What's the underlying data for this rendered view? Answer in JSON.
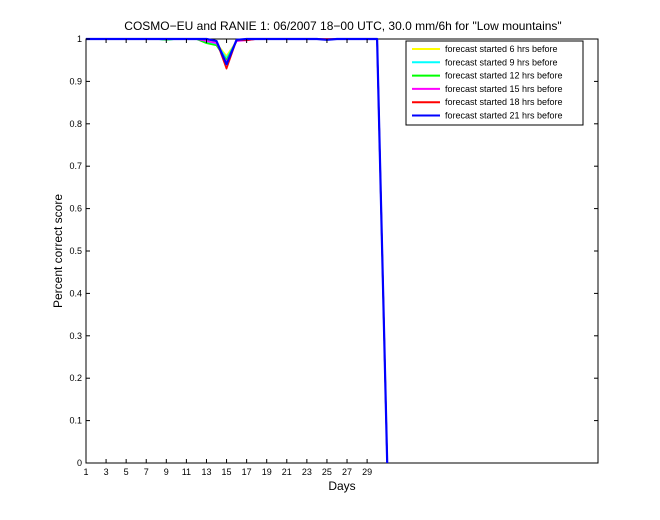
{
  "chart_data": {
    "type": "line",
    "title": "COSMO−EU and RANIE 1: 06/2007 18−00 UTC, 30.0 mm/6h for \"Low mountains\"",
    "xlabel": "Days",
    "ylabel": "Percent correct score",
    "xlim": [
      1,
      52
    ],
    "ylim": [
      0,
      1
    ],
    "x_ticks": [
      1,
      3,
      5,
      7,
      9,
      11,
      13,
      15,
      17,
      19,
      21,
      23,
      25,
      27,
      29
    ],
    "x_tick_labels": [
      "1",
      "3",
      "5",
      "7",
      "9",
      "11",
      "13",
      "15",
      "17",
      "19",
      "21",
      "23",
      "25",
      "27",
      "29"
    ],
    "y_ticks": [
      0,
      0.1,
      0.2,
      0.3,
      0.4,
      0.5,
      0.6,
      0.7,
      0.8,
      0.9,
      1
    ],
    "y_tick_labels": [
      "0",
      "0.1",
      "0.2",
      "0.3",
      "0.4",
      "0.5",
      "0.6",
      "0.7",
      "0.8",
      "0.9",
      "1"
    ],
    "grid": false,
    "legend_position": "top-right",
    "x": [
      1,
      2,
      3,
      4,
      5,
      6,
      7,
      8,
      9,
      10,
      11,
      12,
      13,
      14,
      15,
      16,
      17,
      18,
      19,
      20,
      21,
      22,
      23,
      24,
      25,
      26,
      27,
      28,
      29,
      30,
      31
    ],
    "series": [
      {
        "name": "forecast started 6 hrs before",
        "color": "#ffff00",
        "values": [
          1,
          1,
          1,
          1,
          1,
          1,
          1,
          1,
          1,
          1,
          1,
          1,
          0.995,
          0.99,
          0.96,
          0.995,
          1,
          1,
          1,
          1,
          1,
          1,
          1,
          1,
          1,
          1,
          1,
          1,
          1,
          1,
          0
        ]
      },
      {
        "name": "forecast started 9 hrs before",
        "color": "#00ffff",
        "values": [
          1,
          1,
          1,
          1,
          1,
          1,
          1,
          1,
          0.998,
          1,
          1,
          1,
          0.993,
          0.988,
          0.955,
          0.995,
          1,
          1,
          1,
          1,
          1,
          1,
          1,
          1,
          1,
          1,
          1,
          1,
          1,
          1,
          0
        ]
      },
      {
        "name": "forecast started 12 hrs before",
        "color": "#00ff00",
        "values": [
          1,
          1,
          1,
          1,
          1,
          1,
          1,
          1,
          0.998,
          1,
          1,
          1,
          0.99,
          0.985,
          0.95,
          0.995,
          1,
          1,
          1,
          1,
          1,
          1,
          1,
          1,
          1,
          1,
          1,
          1,
          1,
          1,
          0
        ]
      },
      {
        "name": "forecast started 15 hrs before",
        "color": "#ff00ff",
        "values": [
          1,
          1,
          1,
          1,
          1,
          1,
          1,
          1,
          1,
          1,
          1,
          1,
          0.995,
          0.99,
          0.945,
          0.995,
          0.997,
          1,
          1,
          1,
          1,
          1,
          1,
          1,
          1,
          1,
          1,
          1,
          1,
          1,
          0
        ]
      },
      {
        "name": "forecast started 18 hrs before",
        "color": "#ff0000",
        "values": [
          1,
          1,
          1,
          1,
          1,
          1,
          1,
          1,
          1,
          1,
          1,
          1,
          1,
          0.995,
          0.93,
          0.998,
          0.997,
          1,
          1,
          1,
          1,
          1,
          1,
          1,
          1,
          1,
          1,
          1,
          1,
          1,
          0
        ]
      },
      {
        "name": "forecast started 21 hrs before",
        "color": "#0000ff",
        "values": [
          1,
          1,
          1,
          1,
          1,
          1,
          1,
          1,
          1,
          1,
          1,
          1,
          1,
          0.995,
          0.94,
          0.998,
          1,
          1,
          1,
          1,
          1,
          1,
          1,
          1,
          0.998,
          1,
          1,
          1,
          1,
          1,
          0
        ]
      }
    ]
  }
}
